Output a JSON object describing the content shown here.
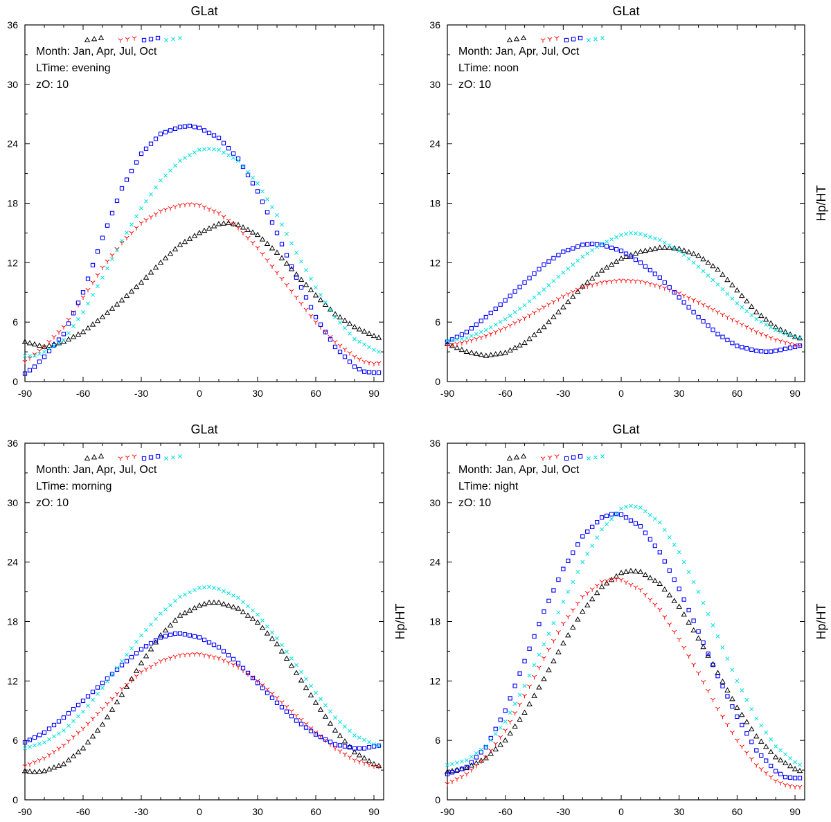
{
  "figure": {
    "xlabel": "GLat",
    "ylabel": "Hp/HT",
    "info_month": "Month: Jan, Apr, Jul, Oct",
    "zO": "zO: 10"
  },
  "colors": {
    "Jan": "#000000",
    "Apr": "#ff0000",
    "Jul": "#0000ff",
    "Oct": "#00e0e0"
  },
  "chart_data": [
    {
      "type": "scatter",
      "panel": "top-left",
      "title": "GLat",
      "xlabel": "GLat",
      "ylabel": "",
      "ltime": "LTime: evening",
      "zO": "zO: 10",
      "xlim": [
        -90,
        95
      ],
      "ylim": [
        0,
        36
      ],
      "xticks": [
        -90,
        -60,
        -30,
        0,
        30,
        60,
        90
      ],
      "yticks": [
        0,
        6,
        12,
        18,
        24,
        30,
        36
      ],
      "series": [
        {
          "name": "Jan",
          "marker": "triangle",
          "x": [
            -90,
            -80,
            -70,
            -60,
            -50,
            -40,
            -30,
            -20,
            -10,
            0,
            10,
            15,
            20,
            30,
            40,
            50,
            60,
            70,
            80,
            90,
            94
          ],
          "y": [
            4.0,
            3.5,
            4.0,
            5.0,
            6.5,
            8.2,
            10.0,
            12.0,
            13.8,
            15.0,
            15.9,
            16.0,
            15.8,
            14.8,
            13.0,
            10.8,
            8.7,
            6.8,
            5.5,
            4.6,
            4.3
          ]
        },
        {
          "name": "Apr",
          "marker": "tri_down",
          "x": [
            -90,
            -80,
            -70,
            -60,
            -50,
            -40,
            -30,
            -20,
            -10,
            -5,
            0,
            10,
            20,
            30,
            40,
            50,
            60,
            70,
            80,
            85,
            90,
            94
          ],
          "y": [
            2.0,
            3.5,
            5.5,
            8.5,
            11.5,
            14.0,
            16.0,
            17.2,
            17.8,
            17.9,
            17.8,
            17.0,
            15.5,
            13.5,
            11.0,
            8.5,
            6.0,
            4.0,
            2.5,
            2.0,
            1.8,
            1.9
          ]
        },
        {
          "name": "Jul",
          "marker": "square",
          "x": [
            -90,
            -85,
            -80,
            -70,
            -60,
            -50,
            -40,
            -30,
            -20,
            -10,
            -5,
            0,
            10,
            20,
            30,
            40,
            50,
            60,
            70,
            80,
            85,
            90,
            94
          ],
          "y": [
            0.8,
            1.5,
            2.5,
            4.8,
            9.0,
            14.5,
            19.5,
            23.0,
            25.0,
            25.7,
            25.8,
            25.6,
            24.6,
            22.5,
            19.2,
            15.0,
            10.5,
            6.5,
            3.5,
            1.5,
            1.0,
            0.9,
            0.9
          ]
        },
        {
          "name": "Oct",
          "marker": "x",
          "x": [
            -90,
            -85,
            -80,
            -70,
            -60,
            -50,
            -40,
            -30,
            -20,
            -10,
            0,
            5,
            10,
            20,
            30,
            40,
            50,
            60,
            70,
            80,
            90,
            94
          ],
          "y": [
            2.6,
            2.6,
            3.0,
            4.2,
            7.0,
            10.5,
            14.2,
            17.5,
            20.3,
            22.3,
            23.4,
            23.5,
            23.4,
            22.3,
            20.0,
            16.8,
            13.0,
            9.5,
            6.5,
            4.3,
            3.2,
            2.9
          ]
        }
      ]
    },
    {
      "type": "scatter",
      "panel": "top-right",
      "title": "GLat",
      "xlabel": "GLat",
      "ylabel": "Hp/HT",
      "ltime": "LTime:  noon",
      "zO": "zO: 10",
      "xlim": [
        -90,
        95
      ],
      "ylim": [
        0,
        36
      ],
      "xticks": [
        -90,
        -60,
        -30,
        0,
        30,
        60,
        90
      ],
      "yticks": [
        0,
        6,
        12,
        18,
        24,
        30,
        36
      ],
      "series": [
        {
          "name": "Jan",
          "marker": "triangle",
          "x": [
            -90,
            -80,
            -70,
            -60,
            -50,
            -40,
            -30,
            -20,
            -10,
            0,
            10,
            20,
            25,
            30,
            40,
            50,
            60,
            70,
            80,
            90,
            94
          ],
          "y": [
            3.8,
            3.0,
            2.6,
            2.9,
            3.9,
            5.5,
            7.5,
            9.6,
            11.2,
            12.4,
            13.1,
            13.5,
            13.5,
            13.4,
            12.7,
            11.3,
            9.2,
            7.0,
            5.5,
            4.5,
            4.3
          ]
        },
        {
          "name": "Apr",
          "marker": "tri_down",
          "x": [
            -90,
            -80,
            -70,
            -60,
            -50,
            -40,
            -30,
            -20,
            -10,
            0,
            10,
            20,
            30,
            40,
            50,
            60,
            70,
            80,
            90,
            94
          ],
          "y": [
            3.6,
            4.0,
            4.6,
            5.4,
            6.4,
            7.5,
            8.6,
            9.5,
            10.0,
            10.2,
            10.1,
            9.6,
            8.9,
            8.0,
            7.0,
            6.0,
            5.0,
            4.2,
            3.7,
            3.6
          ]
        },
        {
          "name": "Jul",
          "marker": "square",
          "x": [
            -90,
            -80,
            -70,
            -60,
            -50,
            -40,
            -30,
            -20,
            -15,
            -10,
            0,
            10,
            20,
            30,
            40,
            50,
            60,
            70,
            76,
            80,
            90,
            94
          ],
          "y": [
            4.0,
            5.0,
            6.5,
            8.2,
            10.0,
            11.8,
            13.1,
            13.8,
            13.9,
            13.8,
            13.2,
            12.0,
            10.5,
            8.5,
            6.5,
            4.8,
            3.6,
            3.1,
            3.0,
            3.1,
            3.5,
            3.7
          ]
        },
        {
          "name": "Oct",
          "marker": "x",
          "x": [
            -90,
            -80,
            -70,
            -60,
            -50,
            -40,
            -30,
            -20,
            -10,
            0,
            5,
            10,
            20,
            30,
            40,
            50,
            60,
            70,
            80,
            90,
            94
          ],
          "y": [
            4.1,
            4.4,
            5.2,
            6.3,
            7.7,
            9.3,
            11.0,
            12.6,
            13.9,
            14.8,
            15.0,
            14.9,
            14.3,
            13.2,
            11.6,
            9.8,
            7.9,
            6.3,
            5.2,
            4.5,
            4.3
          ]
        }
      ]
    },
    {
      "type": "scatter",
      "panel": "bottom-left",
      "title": "GLat",
      "xlabel": "GLat",
      "ylabel": "Hp/HT",
      "ltime": "LTime: morning",
      "zO": "zO: 10",
      "xlim": [
        -90,
        95
      ],
      "ylim": [
        0,
        36
      ],
      "xticks": [
        -90,
        -60,
        -30,
        0,
        30,
        60,
        90
      ],
      "yticks": [
        0,
        6,
        12,
        18,
        24,
        30,
        36
      ],
      "series": [
        {
          "name": "Jan",
          "marker": "triangle",
          "x": [
            -90,
            -85,
            -80,
            -70,
            -60,
            -50,
            -40,
            -30,
            -20,
            -10,
            0,
            5,
            10,
            20,
            30,
            40,
            50,
            60,
            70,
            80,
            90,
            94
          ],
          "y": [
            2.9,
            2.8,
            2.9,
            3.6,
            5.2,
            7.6,
            10.6,
            13.8,
            16.6,
            18.6,
            19.6,
            19.9,
            19.9,
            19.3,
            17.9,
            15.7,
            12.8,
            9.8,
            7.0,
            4.8,
            3.6,
            3.3
          ]
        },
        {
          "name": "Apr",
          "marker": "tri_down",
          "x": [
            -90,
            -80,
            -70,
            -60,
            -50,
            -40,
            -30,
            -20,
            -10,
            -3,
            0,
            10,
            20,
            30,
            40,
            50,
            60,
            70,
            80,
            90,
            94
          ],
          "y": [
            3.4,
            4.2,
            5.5,
            7.2,
            9.2,
            11.2,
            12.9,
            14.0,
            14.6,
            14.7,
            14.7,
            14.3,
            13.4,
            12.0,
            10.3,
            8.5,
            6.8,
            5.2,
            4.0,
            3.4,
            3.3
          ]
        },
        {
          "name": "Jul",
          "marker": "square",
          "x": [
            -90,
            -80,
            -70,
            -60,
            -50,
            -40,
            -30,
            -20,
            -12,
            -10,
            0,
            10,
            20,
            30,
            40,
            50,
            60,
            70,
            80,
            85,
            90,
            94
          ],
          "y": [
            5.8,
            6.8,
            8.3,
            10.0,
            11.8,
            13.6,
            15.2,
            16.4,
            16.8,
            16.8,
            16.4,
            15.4,
            13.8,
            11.8,
            9.8,
            8.0,
            6.6,
            5.6,
            5.2,
            5.2,
            5.4,
            5.5
          ]
        },
        {
          "name": "Oct",
          "marker": "x",
          "x": [
            -90,
            -80,
            -70,
            -60,
            -50,
            -40,
            -30,
            -20,
            -10,
            0,
            5,
            10,
            20,
            30,
            40,
            50,
            60,
            70,
            80,
            90,
            94
          ],
          "y": [
            5.2,
            5.8,
            7.0,
            8.9,
            11.3,
            14.0,
            16.6,
            18.8,
            20.5,
            21.4,
            21.5,
            21.3,
            20.4,
            18.7,
            16.3,
            13.6,
            10.8,
            8.3,
            6.5,
            5.6,
            5.3
          ]
        }
      ]
    },
    {
      "type": "scatter",
      "panel": "bottom-right",
      "title": "GLat",
      "xlabel": "GLat",
      "ylabel": "Hp/HT",
      "ltime": "LTime: night",
      "zO": "zO: 10",
      "xlim": [
        -90,
        95
      ],
      "ylim": [
        0,
        36
      ],
      "xticks": [
        -90,
        -60,
        -30,
        0,
        30,
        60,
        90
      ],
      "yticks": [
        0,
        6,
        12,
        18,
        24,
        30,
        36
      ],
      "series": [
        {
          "name": "Jan",
          "marker": "triangle",
          "x": [
            -90,
            -80,
            -70,
            -60,
            -50,
            -40,
            -30,
            -20,
            -10,
            0,
            5,
            10,
            20,
            30,
            40,
            50,
            60,
            70,
            80,
            90,
            94
          ],
          "y": [
            2.8,
            3.2,
            4.2,
            6.0,
            8.8,
            12.2,
            15.8,
            19.0,
            21.5,
            22.9,
            23.1,
            23.0,
            21.8,
            19.5,
            16.3,
            12.8,
            9.3,
            6.4,
            4.3,
            3.1,
            2.8
          ]
        },
        {
          "name": "Apr",
          "marker": "tri_down",
          "x": [
            -90,
            -80,
            -70,
            -60,
            -50,
            -40,
            -30,
            -20,
            -10,
            -3,
            0,
            10,
            20,
            30,
            40,
            50,
            60,
            70,
            80,
            85,
            90,
            94
          ],
          "y": [
            1.6,
            2.6,
            4.3,
            7.0,
            10.5,
            14.3,
            17.8,
            20.5,
            22.0,
            22.3,
            22.2,
            21.2,
            19.2,
            16.2,
            12.8,
            9.2,
            6.0,
            3.5,
            1.9,
            1.5,
            1.3,
            1.3
          ]
        },
        {
          "name": "Jul",
          "marker": "square",
          "x": [
            -90,
            -80,
            -70,
            -60,
            -50,
            -40,
            -30,
            -20,
            -10,
            -4,
            0,
            10,
            20,
            30,
            40,
            50,
            60,
            70,
            80,
            85,
            90,
            94
          ],
          "y": [
            2.6,
            3.3,
            5.3,
            9.0,
            14.0,
            19.0,
            23.3,
            26.6,
            28.5,
            28.9,
            28.8,
            27.6,
            25.0,
            21.3,
            17.0,
            12.5,
            8.4,
            5.0,
            2.9,
            2.3,
            2.2,
            2.2
          ]
        },
        {
          "name": "Oct",
          "marker": "x",
          "x": [
            -90,
            -80,
            -70,
            -60,
            -50,
            -40,
            -30,
            -20,
            -10,
            0,
            4,
            10,
            20,
            30,
            40,
            50,
            60,
            70,
            80,
            90,
            94
          ],
          "y": [
            3.5,
            4.0,
            5.4,
            7.9,
            11.5,
            15.7,
            20.0,
            24.0,
            27.3,
            29.4,
            29.7,
            29.5,
            28.0,
            25.0,
            21.0,
            16.5,
            12.0,
            8.2,
            5.4,
            3.8,
            3.4
          ]
        }
      ]
    }
  ]
}
